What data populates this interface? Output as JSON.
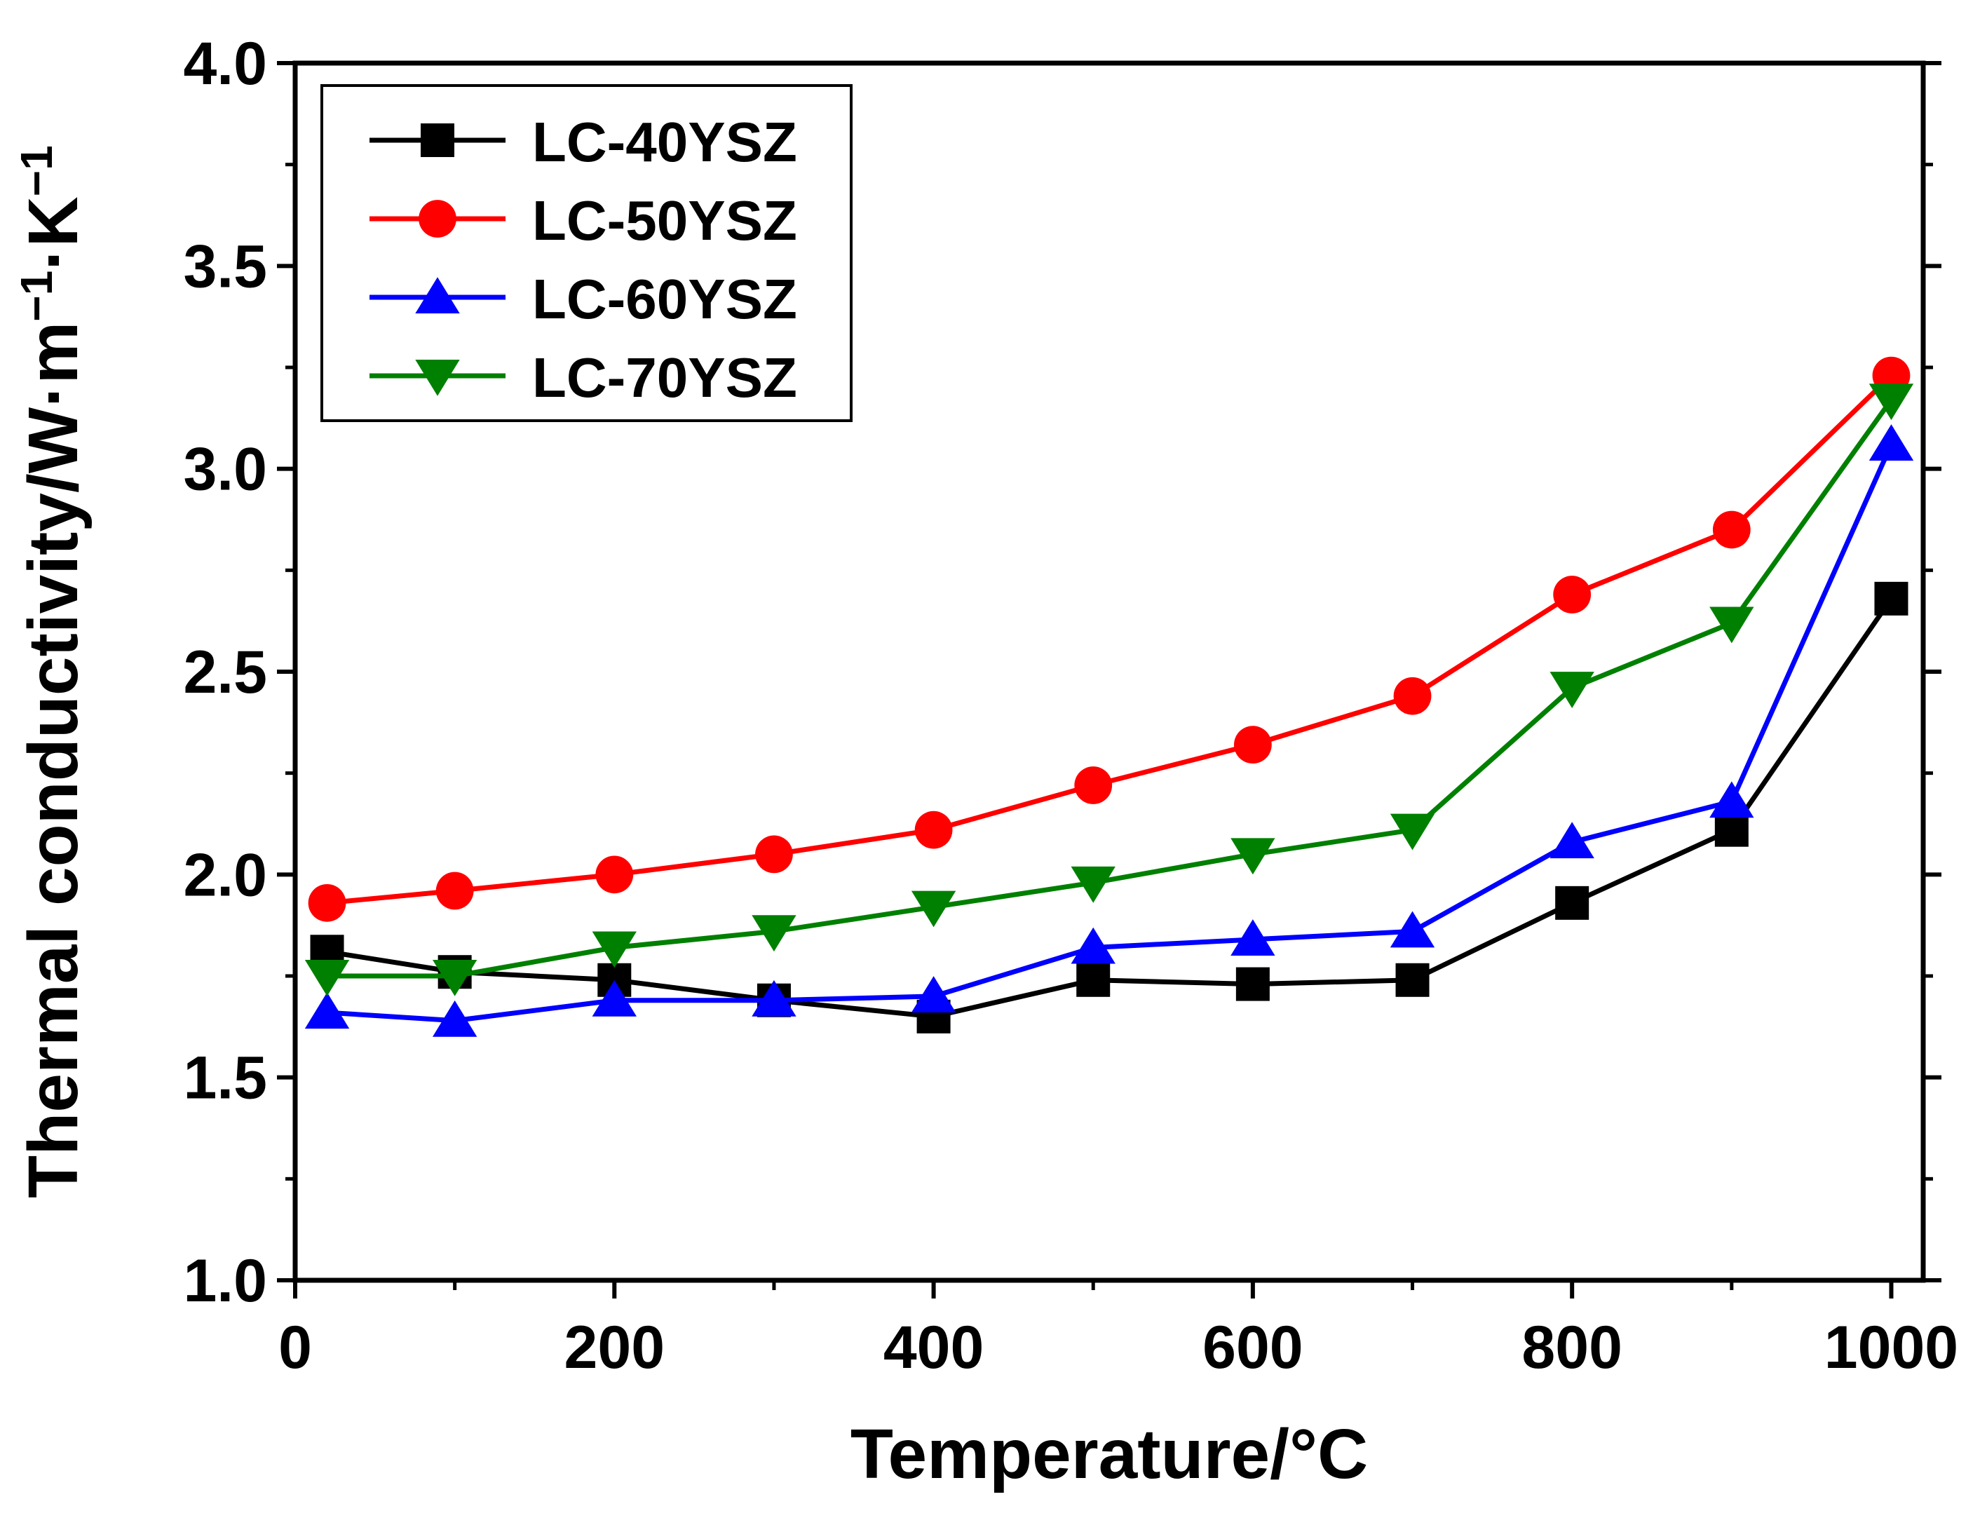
{
  "chart_data": {
    "type": "line",
    "xlabel": "Temperature/°C",
    "ylabel": {
      "base": "Thermal conductivity/W·m",
      "exp1": "−1",
      "mid": "·K",
      "exp2": "−1"
    },
    "xlim": [
      0,
      1020
    ],
    "ylim": [
      1.0,
      4.0
    ],
    "xticks": [
      0,
      200,
      400,
      600,
      800,
      1000
    ],
    "xtick_labels": [
      "0",
      "200",
      "400",
      "600",
      "800",
      "1000"
    ],
    "yticks": [
      1.0,
      1.5,
      2.0,
      2.5,
      3.0,
      3.5,
      4.0
    ],
    "ytick_labels": [
      "1.0",
      "1.5",
      "2.0",
      "2.5",
      "3.0",
      "3.5",
      "4.0"
    ],
    "x": [
      20,
      100,
      200,
      300,
      400,
      500,
      600,
      700,
      800,
      900,
      1000
    ],
    "grid": false,
    "legend_position": "top-left",
    "series": [
      {
        "name": "LC-40YSZ",
        "color": "#000000",
        "marker": "square",
        "values": [
          1.81,
          1.76,
          1.74,
          1.69,
          1.65,
          1.74,
          1.73,
          1.74,
          1.93,
          2.11,
          2.68
        ]
      },
      {
        "name": "LC-50YSZ",
        "color": "#ff0000",
        "marker": "circle",
        "values": [
          1.93,
          1.96,
          2.0,
          2.05,
          2.11,
          2.22,
          2.32,
          2.44,
          2.69,
          2.85,
          3.23
        ]
      },
      {
        "name": "LC-60YSZ",
        "color": "#0000ff",
        "marker": "triangle-up",
        "values": [
          1.66,
          1.64,
          1.69,
          1.69,
          1.7,
          1.82,
          1.84,
          1.86,
          2.08,
          2.18,
          3.06
        ]
      },
      {
        "name": "LC-70YSZ",
        "color": "#008000",
        "marker": "triangle-down",
        "values": [
          1.75,
          1.75,
          1.82,
          1.86,
          1.92,
          1.98,
          2.05,
          2.11,
          2.46,
          2.62,
          3.17
        ]
      }
    ]
  }
}
